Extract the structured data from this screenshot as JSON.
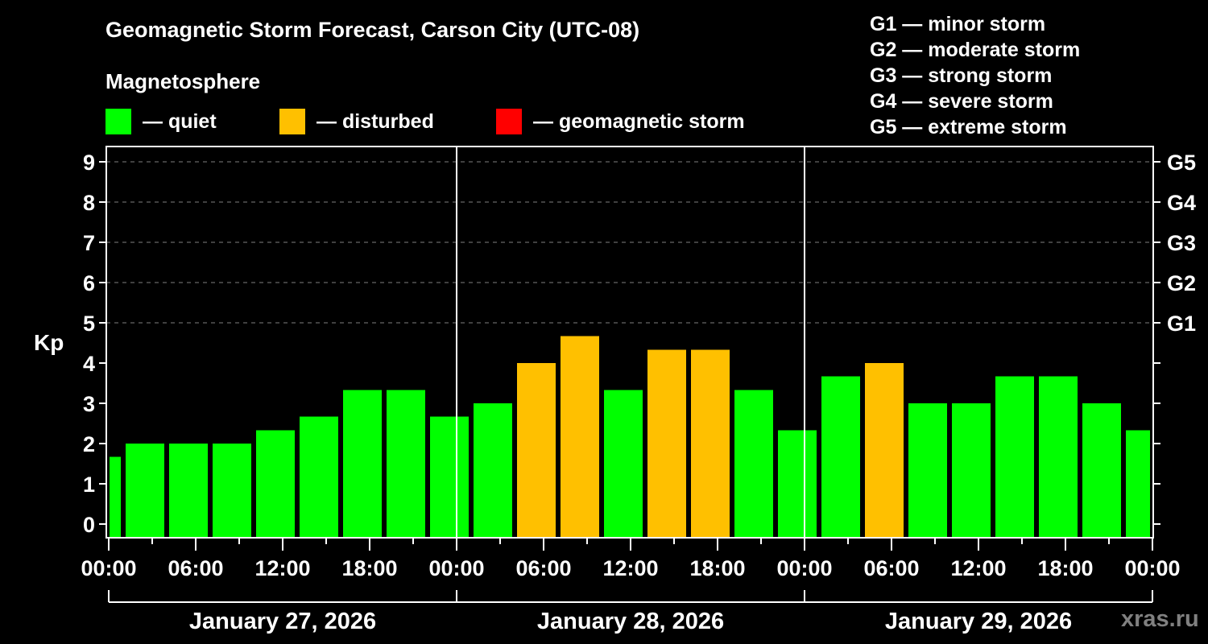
{
  "header": {
    "title": "Geomagnetic Storm Forecast, Carson City (UTC-08)",
    "subtitle": "Magnetosphere"
  },
  "legend": [
    {
      "label": "— quiet",
      "color": "#00ff00"
    },
    {
      "label": "— disturbed",
      "color": "#ffc000"
    },
    {
      "label": "— geomagnetic storm",
      "color": "#ff0000"
    }
  ],
  "storm_levels": [
    "G1 — minor storm",
    "G2 — moderate storm",
    "G3 — strong storm",
    "G4 — severe storm",
    "G5 — extreme storm"
  ],
  "axis": {
    "ylabel": "Kp",
    "y_ticks": [
      "0",
      "1",
      "2",
      "3",
      "4",
      "5",
      "6",
      "7",
      "8",
      "9"
    ],
    "right_ticks": [
      {
        "kp": 5,
        "label": "G1"
      },
      {
        "kp": 6,
        "label": "G2"
      },
      {
        "kp": 7,
        "label": "G3"
      },
      {
        "kp": 8,
        "label": "G4"
      },
      {
        "kp": 9,
        "label": "G5"
      }
    ],
    "x_ticks": [
      "00:00",
      "06:00",
      "12:00",
      "18:00",
      "00:00",
      "06:00",
      "12:00",
      "18:00",
      "00:00",
      "06:00",
      "12:00",
      "18:00",
      "00:00"
    ],
    "dates": [
      "January 27, 2026",
      "January 28, 2026",
      "January 29, 2026"
    ]
  },
  "watermark": "xras.ru",
  "colors": {
    "quiet": "#00ff00",
    "disturbed": "#ffc000",
    "storm": "#ff0000",
    "background": "#000000",
    "grid": "#808080"
  },
  "chart_data": {
    "type": "bar",
    "title": "Geomagnetic Storm Forecast, Carson City (UTC-08)",
    "xlabel": "",
    "ylabel": "Kp",
    "ylim": [
      0,
      9
    ],
    "grid": "dashed horizontal at Kp 5-9",
    "block_hours": 3,
    "first_block_start_local_hour": -2,
    "categories": [
      "Jan27 -02:00",
      "Jan27 01:00",
      "Jan27 04:00",
      "Jan27 07:00",
      "Jan27 10:00",
      "Jan27 13:00",
      "Jan27 16:00",
      "Jan27 19:00",
      "Jan27 22:00",
      "Jan28 01:00",
      "Jan28 04:00",
      "Jan28 07:00",
      "Jan28 10:00",
      "Jan28 13:00",
      "Jan28 16:00",
      "Jan28 19:00",
      "Jan28 22:00",
      "Jan29 01:00",
      "Jan29 04:00",
      "Jan29 07:00",
      "Jan29 10:00",
      "Jan29 13:00",
      "Jan29 16:00",
      "Jan29 19:00",
      "Jan29 22:00"
    ],
    "values": [
      1.67,
      2,
      2,
      2,
      2.33,
      2.67,
      3.33,
      3.33,
      2.67,
      3,
      4,
      4.67,
      3.33,
      4.33,
      4.33,
      3.33,
      2.33,
      3.67,
      4,
      3,
      3,
      3.67,
      3.67,
      3,
      2.33
    ],
    "status": [
      "quiet",
      "quiet",
      "quiet",
      "quiet",
      "quiet",
      "quiet",
      "quiet",
      "quiet",
      "quiet",
      "quiet",
      "disturbed",
      "disturbed",
      "quiet",
      "disturbed",
      "disturbed",
      "quiet",
      "quiet",
      "quiet",
      "disturbed",
      "quiet",
      "quiet",
      "quiet",
      "quiet",
      "quiet",
      "quiet"
    ],
    "legend": [
      "quiet",
      "disturbed",
      "geomagnetic storm"
    ]
  }
}
